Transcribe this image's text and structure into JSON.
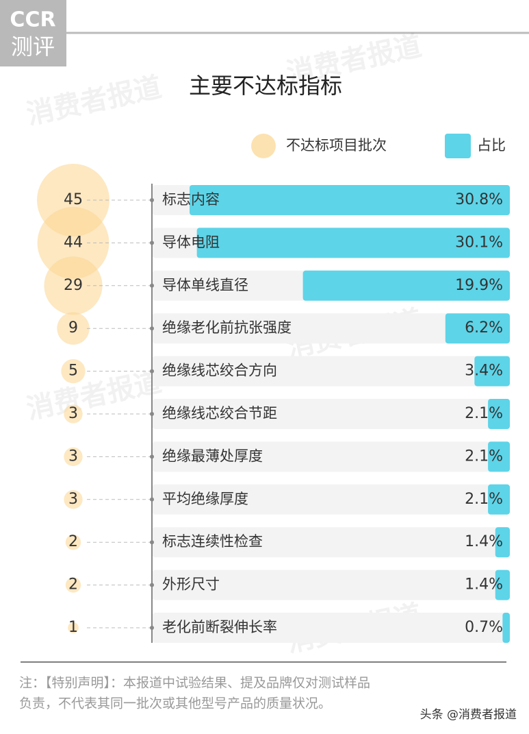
{
  "logo": {
    "top": "CCR",
    "bottom": "测评"
  },
  "watermark": "消费者报道",
  "chart_data": {
    "type": "bubble-bar",
    "title": "主要不达标指标",
    "categories": [
      "标志内容",
      "导体电阻",
      "导体单线直径",
      "绝缘老化前抗张强度",
      "绝缘线芯绞合方向",
      "绝缘线芯绞合节距",
      "绝缘最薄处厚度",
      "平均绝缘厚度",
      "标志连续性检查",
      "外形尺寸",
      "老化前断裂伸长率"
    ],
    "series": [
      {
        "name": "不达标项目批次",
        "color": "#fbd590",
        "values": [
          45,
          44,
          29,
          9,
          5,
          3,
          3,
          3,
          2,
          2,
          1
        ]
      },
      {
        "name": "占比",
        "color": "#5dd4e8",
        "values": [
          30.8,
          30.1,
          19.9,
          6.2,
          3.4,
          2.1,
          2.1,
          2.1,
          1.4,
          1.4,
          0.7
        ],
        "value_labels": [
          "30.8%",
          "30.1%",
          "19.9%",
          "6.2%",
          "3.4%",
          "2.1%",
          "2.1%",
          "2.1%",
          "1.4%",
          "1.4%",
          "0.7%"
        ]
      }
    ]
  },
  "note": [
    "注：【特别声明】：本报道中试验结果、提及品牌仅对测试样品",
    "负责，不代表其同一批次或其他型号产品的质量状况。"
  ],
  "source": "头条 @消费者报道"
}
